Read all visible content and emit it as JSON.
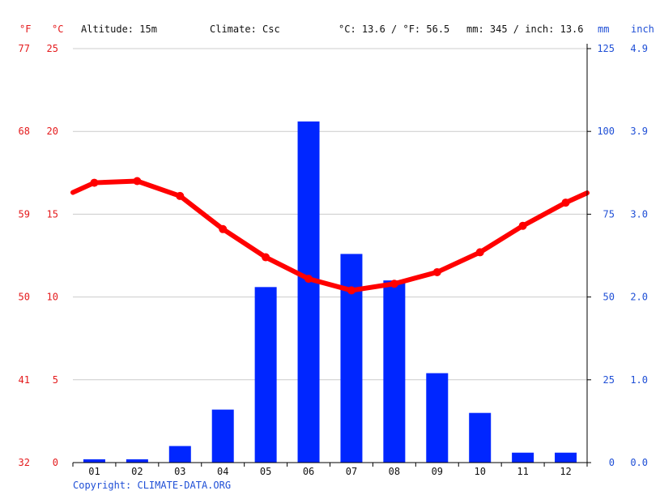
{
  "header": {
    "unit_f": "°F",
    "unit_c": "°C",
    "altitude": "Altitude: 15m",
    "climate": "Climate: Csc",
    "temp_avg": "°C: 13.6 / °F: 56.5",
    "precip_avg": "mm: 345 / inch: 13.6",
    "unit_mm": "mm",
    "unit_inch": "inch"
  },
  "footer": {
    "copyright": "Copyright: CLIMATE-DATA.ORG"
  },
  "colors": {
    "temperature": "#ff0000",
    "precipitation": "#0026ff",
    "grid": "#cccccc",
    "axis_red": "#e41a1c",
    "axis_blue": "#1f4fd6"
  },
  "chart_data": {
    "type": "bar",
    "categories": [
      "01",
      "02",
      "03",
      "04",
      "05",
      "06",
      "07",
      "08",
      "09",
      "10",
      "11",
      "12"
    ],
    "series": [
      {
        "type": "bar",
        "axis": "right",
        "values": [
          1,
          1,
          5,
          16,
          53,
          103,
          63,
          55,
          27,
          15,
          3,
          3
        ]
      },
      {
        "type": "line",
        "axis": "left",
        "values": [
          16.9,
          17.0,
          16.1,
          14.1,
          12.4,
          11.1,
          10.4,
          10.8,
          11.5,
          12.7,
          14.3,
          15.7
        ]
      }
    ],
    "axes": {
      "left_c": {
        "ticks": [
          "0",
          "5",
          "10",
          "15",
          "20",
          "25"
        ],
        "ylim": [
          0,
          25
        ]
      },
      "left_f": {
        "ticks": [
          "32",
          "41",
          "50",
          "59",
          "68",
          "77"
        ]
      },
      "right_mm": {
        "ticks": [
          "0",
          "25",
          "50",
          "75",
          "100",
          "125"
        ],
        "ylim": [
          0,
          125
        ]
      },
      "right_inch": {
        "ticks": [
          "0.0",
          "1.0",
          "2.0",
          "3.0",
          "3.9",
          "4.9"
        ]
      }
    },
    "grid": true
  }
}
